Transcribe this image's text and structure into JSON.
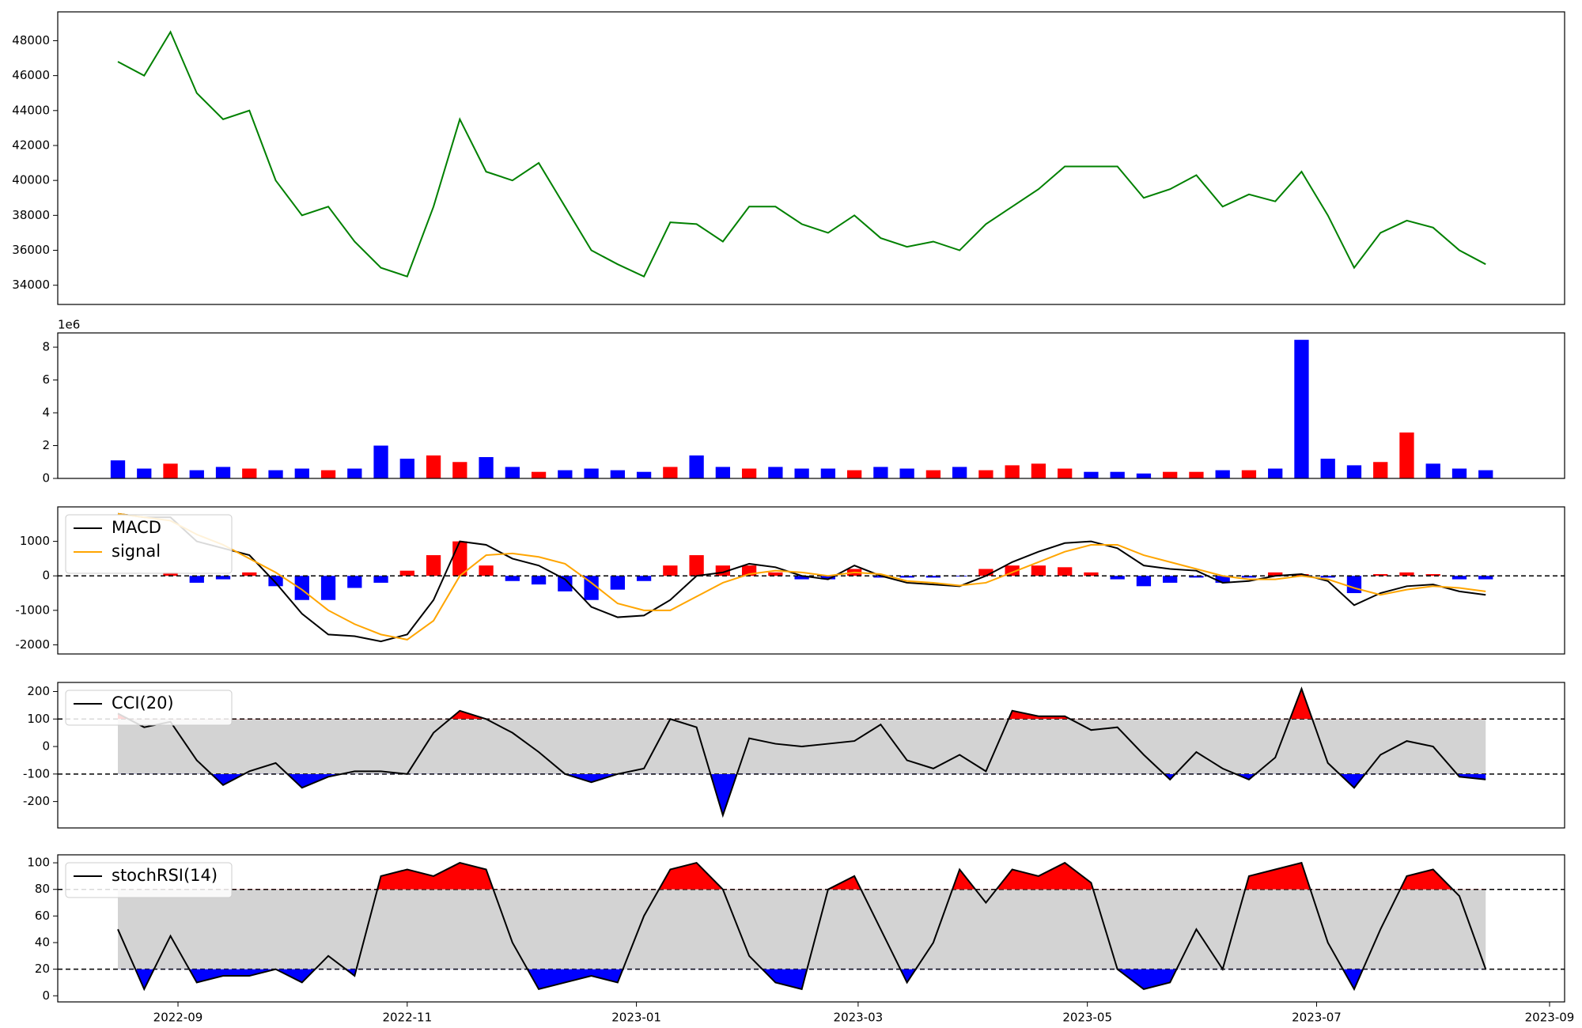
{
  "chart_data": [
    {
      "type": "line",
      "x": [
        "2022-08-16",
        "2022-08-23",
        "2022-08-30",
        "2022-09-06",
        "2022-09-13",
        "2022-09-20",
        "2022-09-27",
        "2022-10-04",
        "2022-10-11",
        "2022-10-18",
        "2022-10-25",
        "2022-11-01",
        "2022-11-08",
        "2022-11-15",
        "2022-11-22",
        "2022-11-29",
        "2022-12-06",
        "2022-12-13",
        "2022-12-20",
        "2022-12-27",
        "2023-01-03",
        "2023-01-10",
        "2023-01-17",
        "2023-01-24",
        "2023-01-31",
        "2023-02-07",
        "2023-02-14",
        "2023-02-21",
        "2023-02-28",
        "2023-03-07",
        "2023-03-14",
        "2023-03-21",
        "2023-03-28",
        "2023-04-04",
        "2023-04-11",
        "2023-04-18",
        "2023-04-25",
        "2023-05-02",
        "2023-05-09",
        "2023-05-16",
        "2023-05-23",
        "2023-05-30",
        "2023-06-06",
        "2023-06-13",
        "2023-06-20",
        "2023-06-27",
        "2023-07-04",
        "2023-07-11",
        "2023-07-18",
        "2023-07-25",
        "2023-08-01",
        "2023-08-08",
        "2023-08-15"
      ],
      "series": [
        {
          "color": "green",
          "values": [
            46800,
            46000,
            48500,
            45000,
            43500,
            44000,
            40000,
            38000,
            38500,
            36500,
            35000,
            34500,
            38500,
            43500,
            40500,
            40000,
            41000,
            38500,
            36000,
            35200,
            34500,
            37600,
            37500,
            36500,
            38500,
            38500,
            37500,
            37000,
            38000,
            36700,
            36200,
            36500,
            36000,
            37500,
            38500,
            39500,
            40800,
            40800,
            40800,
            39000,
            39500,
            40300,
            38500,
            39200,
            38800,
            40500,
            38000,
            35000,
            37000,
            37700,
            37300,
            36000,
            35200
          ]
        }
      ],
      "ylim": [
        32900,
        49650
      ],
      "yticks": [
        34000,
        36000,
        38000,
        40000,
        42000,
        44000,
        46000,
        48000
      ]
    },
    {
      "type": "bar",
      "x": [
        "2022-08-16",
        "2022-08-23",
        "2022-08-30",
        "2022-09-06",
        "2022-09-13",
        "2022-09-20",
        "2022-09-27",
        "2022-10-04",
        "2022-10-11",
        "2022-10-18",
        "2022-10-25",
        "2022-11-01",
        "2022-11-08",
        "2022-11-15",
        "2022-11-22",
        "2022-11-29",
        "2022-12-06",
        "2022-12-13",
        "2022-12-20",
        "2022-12-27",
        "2023-01-03",
        "2023-01-10",
        "2023-01-17",
        "2023-01-24",
        "2023-01-31",
        "2023-02-07",
        "2023-02-14",
        "2023-02-21",
        "2023-02-28",
        "2023-03-07",
        "2023-03-14",
        "2023-03-21",
        "2023-03-28",
        "2023-04-04",
        "2023-04-11",
        "2023-04-18",
        "2023-04-25",
        "2023-05-02",
        "2023-05-09",
        "2023-05-16",
        "2023-05-23",
        "2023-05-30",
        "2023-06-06",
        "2023-06-13",
        "2023-06-20",
        "2023-06-27",
        "2023-07-04",
        "2023-07-11",
        "2023-07-18",
        "2023-07-25",
        "2023-08-01",
        "2023-08-08",
        "2023-08-15"
      ],
      "series": [
        {
          "colors": [
            "blue",
            "blue",
            "red",
            "blue",
            "blue",
            "red",
            "blue",
            "blue",
            "red",
            "blue",
            "blue",
            "blue",
            "red",
            "red",
            "blue",
            "blue",
            "red",
            "blue",
            "blue",
            "blue",
            "blue",
            "red",
            "blue",
            "blue",
            "red",
            "blue",
            "blue",
            "blue",
            "red",
            "blue",
            "blue",
            "red",
            "blue",
            "red",
            "red",
            "red",
            "red",
            "blue",
            "blue",
            "blue",
            "red",
            "red",
            "blue",
            "red",
            "blue",
            "blue",
            "blue",
            "blue",
            "red",
            "red",
            "blue",
            "blue",
            "blue"
          ],
          "values": [
            1100000,
            600000,
            900000,
            500000,
            700000,
            600000,
            500000,
            600000,
            500000,
            600000,
            2000000,
            1200000,
            1400000,
            1000000,
            1300000,
            700000,
            400000,
            500000,
            600000,
            500000,
            400000,
            700000,
            1400000,
            700000,
            600000,
            700000,
            600000,
            600000,
            500000,
            700000,
            600000,
            500000,
            700000,
            500000,
            800000,
            900000,
            600000,
            400000,
            400000,
            300000,
            400000,
            400000,
            500000,
            500000,
            600000,
            8450000,
            1200000,
            800000,
            1000000,
            2800000,
            900000,
            600000,
            500000
          ]
        }
      ],
      "y_offset_label": "1e6",
      "ylim": [
        0,
        8870000
      ],
      "yticks": [
        {
          "value": 0,
          "label": "0"
        },
        {
          "value": 2000000,
          "label": "2"
        },
        {
          "value": 4000000,
          "label": "4"
        },
        {
          "value": 6000000,
          "label": "6"
        },
        {
          "value": 8000000,
          "label": "8"
        }
      ]
    },
    {
      "type": "combo",
      "zero_line": true,
      "legend": "upper left",
      "x": [
        "2022-08-16",
        "2022-08-23",
        "2022-08-30",
        "2022-09-06",
        "2022-09-13",
        "2022-09-20",
        "2022-09-27",
        "2022-10-04",
        "2022-10-11",
        "2022-10-18",
        "2022-10-25",
        "2022-11-01",
        "2022-11-08",
        "2022-11-15",
        "2022-11-22",
        "2022-11-29",
        "2022-12-06",
        "2022-12-13",
        "2022-12-20",
        "2022-12-27",
        "2023-01-03",
        "2023-01-10",
        "2023-01-17",
        "2023-01-24",
        "2023-01-31",
        "2023-02-07",
        "2023-02-14",
        "2023-02-21",
        "2023-02-28",
        "2023-03-07",
        "2023-03-14",
        "2023-03-21",
        "2023-03-28",
        "2023-04-04",
        "2023-04-11",
        "2023-04-18",
        "2023-04-25",
        "2023-05-02",
        "2023-05-09",
        "2023-05-16",
        "2023-05-23",
        "2023-05-30",
        "2023-06-06",
        "2023-06-13",
        "2023-06-20",
        "2023-06-27",
        "2023-07-04",
        "2023-07-11",
        "2023-07-18",
        "2023-07-25",
        "2023-08-01",
        "2023-08-08",
        "2023-08-15"
      ],
      "series": [
        {
          "type": "bar",
          "positive_color": "red",
          "negative_color": "blue",
          "values": [
            0,
            0,
            100,
            -200,
            -100,
            100,
            -300,
            -700,
            -700,
            -350,
            -200,
            150,
            600,
            1000,
            300,
            -150,
            -250,
            -450,
            -700,
            -400,
            -150,
            300,
            600,
            300,
            300,
            100,
            -100,
            -100,
            200,
            -50,
            -50,
            -50,
            -20,
            200,
            300,
            300,
            250,
            100,
            -100,
            -300,
            -200,
            -50,
            -200,
            -50,
            100,
            50,
            -50,
            -500,
            50,
            100,
            50,
            -100,
            -100
          ]
        },
        {
          "type": "line",
          "name": "MACD",
          "color": "black",
          "values": [
            1800,
            1700,
            1700,
            1000,
            800,
            600,
            -200,
            -1100,
            -1700,
            -1750,
            -1900,
            -1700,
            -700,
            1000,
            900,
            500,
            300,
            -100,
            -900,
            -1200,
            -1150,
            -700,
            0,
            100,
            350,
            250,
            0,
            -100,
            300,
            0,
            -200,
            -250,
            -300,
            0,
            400,
            700,
            950,
            1000,
            800,
            300,
            200,
            150,
            -200,
            -150,
            0,
            50,
            -150,
            -850,
            -500,
            -300,
            -250,
            -450,
            -550
          ]
        },
        {
          "type": "line",
          "name": "signal",
          "color": "orange",
          "values": [
            1800,
            1700,
            1600,
            1200,
            900,
            500,
            100,
            -400,
            -1000,
            -1400,
            -1700,
            -1850,
            -1300,
            0,
            600,
            650,
            550,
            350,
            -200,
            -800,
            -1000,
            -1000,
            -600,
            -200,
            50,
            150,
            100,
            0,
            100,
            50,
            -150,
            -200,
            -280,
            -200,
            100,
            400,
            700,
            900,
            900,
            600,
            400,
            200,
            0,
            -100,
            -100,
            0,
            -100,
            -350,
            -550,
            -400,
            -300,
            -350,
            -450
          ]
        }
      ],
      "ylim": [
        -2265,
        2000
      ],
      "yticks": [
        -2000,
        -1000,
        0,
        1000
      ]
    },
    {
      "type": "line",
      "legend": "upper left",
      "bands": [
        -100,
        100
      ],
      "band_color": "lightgray",
      "above_color": "red",
      "below_color": "blue",
      "x": [
        "2022-08-16",
        "2022-08-23",
        "2022-08-30",
        "2022-09-06",
        "2022-09-13",
        "2022-09-20",
        "2022-09-27",
        "2022-10-04",
        "2022-10-11",
        "2022-10-18",
        "2022-10-25",
        "2022-11-01",
        "2022-11-08",
        "2022-11-15",
        "2022-11-22",
        "2022-11-29",
        "2022-12-06",
        "2022-12-13",
        "2022-12-20",
        "2022-12-27",
        "2023-01-03",
        "2023-01-10",
        "2023-01-17",
        "2023-01-24",
        "2023-01-31",
        "2023-02-07",
        "2023-02-14",
        "2023-02-21",
        "2023-02-28",
        "2023-03-07",
        "2023-03-14",
        "2023-03-21",
        "2023-03-28",
        "2023-04-04",
        "2023-04-11",
        "2023-04-18",
        "2023-04-25",
        "2023-05-02",
        "2023-05-09",
        "2023-05-16",
        "2023-05-23",
        "2023-05-30",
        "2023-06-06",
        "2023-06-13",
        "2023-06-20",
        "2023-06-27",
        "2023-07-04",
        "2023-07-11",
        "2023-07-18",
        "2023-07-25",
        "2023-08-01",
        "2023-08-08",
        "2023-08-15"
      ],
      "series": [
        {
          "name": "CCI(20)",
          "color": "black",
          "values": [
            120,
            70,
            90,
            -50,
            -140,
            -90,
            -60,
            -150,
            -110,
            -90,
            -90,
            -100,
            50,
            130,
            100,
            50,
            -20,
            -100,
            -130,
            -100,
            -80,
            100,
            70,
            -250,
            30,
            10,
            0,
            10,
            20,
            80,
            -50,
            -80,
            -30,
            -90,
            130,
            110,
            110,
            60,
            70,
            -30,
            -120,
            -20,
            -80,
            -120,
            -40,
            210,
            -60,
            -150,
            -30,
            20,
            0,
            -110,
            -120
          ]
        }
      ],
      "ylim": [
        -296,
        233
      ],
      "yticks": [
        -200,
        -100,
        0,
        100,
        200
      ]
    },
    {
      "type": "line",
      "legend": "upper left",
      "bands": [
        20,
        80
      ],
      "band_color": "lightgray",
      "above_color": "red",
      "below_color": "blue",
      "x": [
        "2022-08-16",
        "2022-08-23",
        "2022-08-30",
        "2022-09-06",
        "2022-09-13",
        "2022-09-20",
        "2022-09-27",
        "2022-10-04",
        "2022-10-11",
        "2022-10-18",
        "2022-10-25",
        "2022-11-01",
        "2022-11-08",
        "2022-11-15",
        "2022-11-22",
        "2022-11-29",
        "2022-12-06",
        "2022-12-13",
        "2022-12-20",
        "2022-12-27",
        "2023-01-03",
        "2023-01-10",
        "2023-01-17",
        "2023-01-24",
        "2023-01-31",
        "2023-02-07",
        "2023-02-14",
        "2023-02-21",
        "2023-02-28",
        "2023-03-07",
        "2023-03-14",
        "2023-03-21",
        "2023-03-28",
        "2023-04-04",
        "2023-04-11",
        "2023-04-18",
        "2023-04-25",
        "2023-05-02",
        "2023-05-09",
        "2023-05-16",
        "2023-05-23",
        "2023-05-30",
        "2023-06-06",
        "2023-06-13",
        "2023-06-20",
        "2023-06-27",
        "2023-07-04",
        "2023-07-11",
        "2023-07-18",
        "2023-07-25",
        "2023-08-01",
        "2023-08-08",
        "2023-08-15"
      ],
      "series": [
        {
          "name": "stochRSI(14)",
          "color": "black",
          "values": [
            50,
            5,
            45,
            10,
            15,
            15,
            20,
            10,
            30,
            15,
            90,
            95,
            90,
            100,
            95,
            40,
            5,
            10,
            15,
            10,
            60,
            95,
            100,
            80,
            30,
            10,
            5,
            80,
            90,
            50,
            10,
            40,
            95,
            70,
            95,
            90,
            100,
            85,
            20,
            5,
            10,
            50,
            20,
            90,
            95,
            100,
            40,
            5,
            50,
            90,
            95,
            75,
            20
          ]
        }
      ],
      "ylim": [
        -4.6,
        106
      ],
      "yticks": [
        0,
        20,
        40,
        60,
        80,
        100
      ],
      "xlim": [
        "2022-07-31",
        "2023-09-05"
      ],
      "xticks": [
        {
          "value": "2022-09-01",
          "label": "2022-09"
        },
        {
          "value": "2022-11-01",
          "label": "2022-11"
        },
        {
          "value": "2023-01-01",
          "label": "2023-01"
        },
        {
          "value": "2023-03-01",
          "label": "2023-03"
        },
        {
          "value": "2023-05-01",
          "label": "2023-05"
        },
        {
          "value": "2023-07-01",
          "label": "2023-07"
        },
        {
          "value": "2023-09-01",
          "label": "2023-09"
        }
      ]
    }
  ]
}
